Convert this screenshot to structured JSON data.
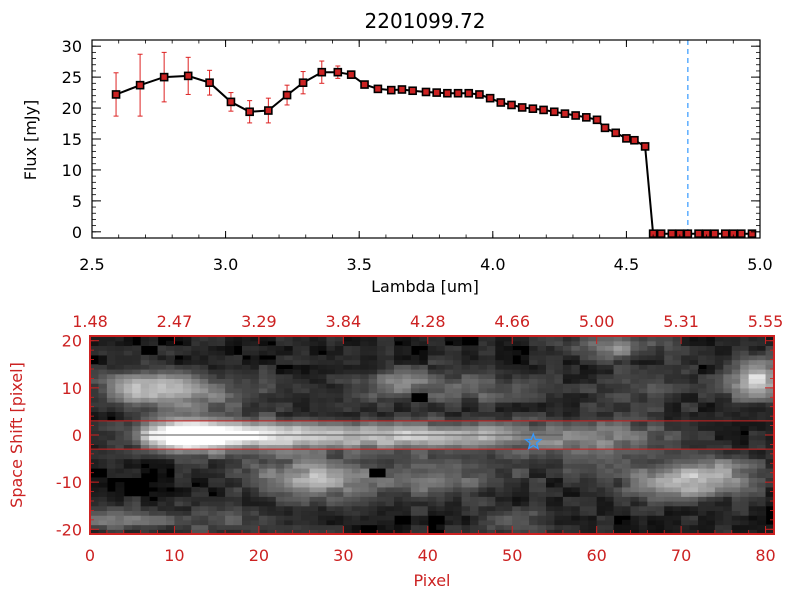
{
  "chart_data": [
    {
      "type": "line",
      "title": "2201099.72",
      "xlabel": "Lambda [um]",
      "ylabel": "Flux [mJy]",
      "xlim": [
        2.5,
        5.0
      ],
      "ylim": [
        -1,
        31
      ],
      "x_ticks": [
        "2.5",
        "3.0",
        "3.5",
        "4.0",
        "4.5",
        "5.0"
      ],
      "y_ticks": [
        "0",
        "5",
        "10",
        "15",
        "20",
        "25",
        "30"
      ],
      "x_tick_values": [
        2.5,
        3.0,
        3.5,
        4.0,
        4.5,
        5.0
      ],
      "y_tick_values": [
        0,
        5,
        10,
        15,
        20,
        25,
        30
      ],
      "series": [
        {
          "x": [
            2.59,
            2.68,
            2.77,
            2.86,
            2.94,
            3.02,
            3.09,
            3.16,
            3.23,
            3.29,
            3.36,
            3.42,
            3.47,
            3.52,
            3.57,
            3.62,
            3.66,
            3.7,
            3.75,
            3.79,
            3.83,
            3.87,
            3.91,
            3.95,
            3.99,
            4.03,
            4.07,
            4.11,
            4.15,
            4.19,
            4.23,
            4.27,
            4.31,
            4.35,
            4.39,
            4.42,
            4.46,
            4.5,
            4.53,
            4.57,
            4.6,
            4.63,
            4.67,
            4.7,
            4.73,
            4.77,
            4.8,
            4.83,
            4.87,
            4.9,
            4.93,
            4.97
          ],
          "y": [
            22.2,
            23.7,
            25.0,
            25.2,
            24.1,
            21.0,
            19.4,
            19.6,
            22.1,
            24.1,
            25.8,
            25.8,
            25.4,
            23.8,
            23.1,
            22.9,
            23.0,
            22.8,
            22.6,
            22.5,
            22.4,
            22.4,
            22.4,
            22.2,
            21.6,
            20.9,
            20.5,
            20.1,
            19.9,
            19.7,
            19.4,
            19.1,
            18.8,
            18.5,
            18.1,
            16.8,
            16.0,
            15.1,
            14.8,
            13.8,
            -0.3,
            -0.3,
            -0.3,
            -0.3,
            -0.3,
            -0.3,
            -0.3,
            -0.3,
            -0.3,
            -0.3,
            -0.3,
            -0.3
          ],
          "yerr": [
            3.5,
            5.0,
            4.0,
            3.0,
            2.0,
            1.5,
            1.8,
            2.0,
            1.6,
            1.8,
            1.8,
            1.0,
            0.6,
            0.5,
            0.5,
            0.5,
            0.5,
            0.5,
            0.5,
            0.5,
            0.5,
            0.5,
            0.5,
            0.5,
            0.5,
            0.5,
            0.5,
            0.5,
            0.5,
            0.5,
            0.5,
            0.5,
            0.5,
            0.5,
            0.5,
            0.5,
            0.5,
            0.5,
            0.5,
            0.5,
            0.4,
            0.4,
            0.4,
            0.4,
            0.4,
            0.4,
            0.4,
            0.4,
            0.4,
            0.4,
            0.4,
            0.4
          ]
        }
      ],
      "vline_x": 4.73,
      "vline_color": "#3399ff",
      "line_color": "#000000",
      "marker_color": "#cc2222",
      "errorbar_color": "#dd2222",
      "grid": false
    },
    {
      "type": "heatmap",
      "xlabel": "Pixel",
      "ylabel": "Space Shift [pixel]",
      "xlim": [
        0,
        81
      ],
      "ylim": [
        -21,
        21
      ],
      "x_ticks": [
        "0",
        "10",
        "20",
        "30",
        "40",
        "50",
        "60",
        "70",
        "80"
      ],
      "y_ticks": [
        "-20",
        "-10",
        "0",
        "10",
        "20"
      ],
      "x_tick_values": [
        0,
        10,
        20,
        30,
        40,
        50,
        60,
        70,
        80
      ],
      "y_tick_values": [
        -20,
        -10,
        0,
        10,
        20
      ],
      "top_ticks": [
        "1.48",
        "2.47",
        "3.29",
        "3.84",
        "4.28",
        "4.66",
        "5.00",
        "5.31",
        "5.55"
      ],
      "top_tick_values": [
        0,
        10,
        20,
        30,
        40,
        50,
        60,
        70,
        80
      ],
      "aperture_lines_y": [
        3,
        -3
      ],
      "aperture_color": "#cc2222",
      "trace": {
        "x_start": 6,
        "x_end": 56,
        "y": 0
      },
      "star_marker": {
        "x": 52.5,
        "y": -1.5,
        "color": "#3399ff"
      },
      "blobs": [
        {
          "x": 11,
          "y": 0,
          "sx": 3.5,
          "sy": 2.4,
          "amp": 0.95
        },
        {
          "x": 18,
          "y": 0,
          "sx": 6,
          "sy": 2.2,
          "amp": 0.6
        },
        {
          "x": 30,
          "y": 0,
          "sx": 10,
          "sy": 2.0,
          "amp": 0.5
        },
        {
          "x": 45,
          "y": 0,
          "sx": 8,
          "sy": 2.0,
          "amp": 0.4
        },
        {
          "x": 7,
          "y": 10,
          "sx": 4,
          "sy": 2.5,
          "amp": 0.55
        },
        {
          "x": 14,
          "y": 9,
          "sx": 6,
          "sy": 3,
          "amp": 0.3
        },
        {
          "x": 37,
          "y": 11,
          "sx": 4,
          "sy": 2.5,
          "amp": 0.35
        },
        {
          "x": 47,
          "y": 10,
          "sx": 4,
          "sy": 2.5,
          "amp": 0.25
        },
        {
          "x": 26,
          "y": -9,
          "sx": 5,
          "sy": 3,
          "amp": 0.55
        },
        {
          "x": 41,
          "y": -9,
          "sx": 6,
          "sy": 3,
          "amp": 0.35
        },
        {
          "x": 50,
          "y": -18,
          "sx": 3,
          "sy": 2,
          "amp": 0.3
        },
        {
          "x": 69,
          "y": -10,
          "sx": 4,
          "sy": 2.5,
          "amp": 0.55
        },
        {
          "x": 75,
          "y": -8,
          "sx": 4,
          "sy": 3,
          "amp": 0.35
        },
        {
          "x": 62,
          "y": 19,
          "sx": 4,
          "sy": 2,
          "amp": 0.4
        },
        {
          "x": 79,
          "y": 12,
          "sx": 2.5,
          "sy": 3,
          "amp": 0.7
        },
        {
          "x": 64,
          "y": 0,
          "sx": 6,
          "sy": 3,
          "amp": 0.2
        },
        {
          "x": 58,
          "y": -3,
          "sx": 5,
          "sy": 4,
          "amp": 0.2
        },
        {
          "x": 2,
          "y": -18,
          "sx": 5,
          "sy": 2,
          "amp": 0.3
        },
        {
          "x": 16,
          "y": -18,
          "sx": 6,
          "sy": 2,
          "amp": 0.2
        },
        {
          "x": 65,
          "y": 10,
          "sx": 5,
          "sy": 3,
          "amp": 0.15
        }
      ],
      "dark_spots": [
        {
          "x": 34,
          "y": -8
        },
        {
          "x": 39,
          "y": 8
        }
      ]
    }
  ]
}
